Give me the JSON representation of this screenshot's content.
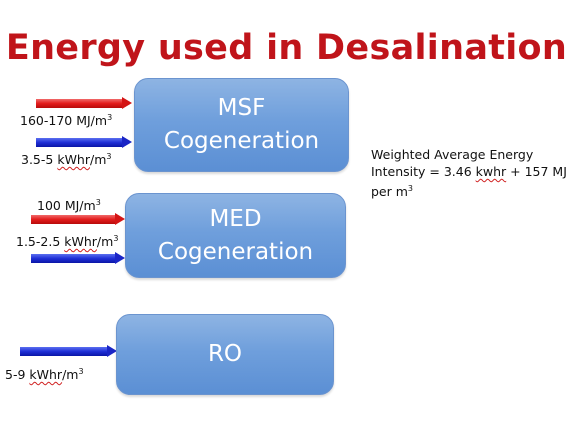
{
  "title": "Energy used in Desalination",
  "boxes": {
    "msf": {
      "line1": "MSF",
      "line2": "Cogeneration"
    },
    "med": {
      "line1": "MED",
      "line2": "Cogeneration"
    },
    "ro": {
      "line1": "RO"
    }
  },
  "inputs": {
    "msf_thermal": {
      "value": "160-170 MJ/m",
      "exp": "3"
    },
    "msf_electric": {
      "value": "3.5-5 ",
      "unit": "kWhr",
      "suffix": "/m",
      "exp": "3"
    },
    "med_thermal": {
      "value": "100 MJ/m",
      "exp": "3"
    },
    "med_electric": {
      "value": "1.5-2.5 ",
      "unit": "kWhr",
      "suffix": "/m",
      "exp": "3"
    },
    "ro_electric": {
      "value": "5-9 ",
      "unit": "kWhr",
      "suffix": "/m",
      "exp": "3"
    }
  },
  "note": {
    "line1": "Weighted  Average Energy",
    "line2_a": "Intensity = 3.46 ",
    "line2_unit": "kwhr",
    "line2_b": " + 157 MJ",
    "line3": "per m",
    "exp": "3"
  },
  "colors": {
    "title": "#c0141a",
    "thermal_arrow": "#e31b1b",
    "electric_arrow": "#1f2fd6",
    "box_fill": "#6f9fdc"
  }
}
